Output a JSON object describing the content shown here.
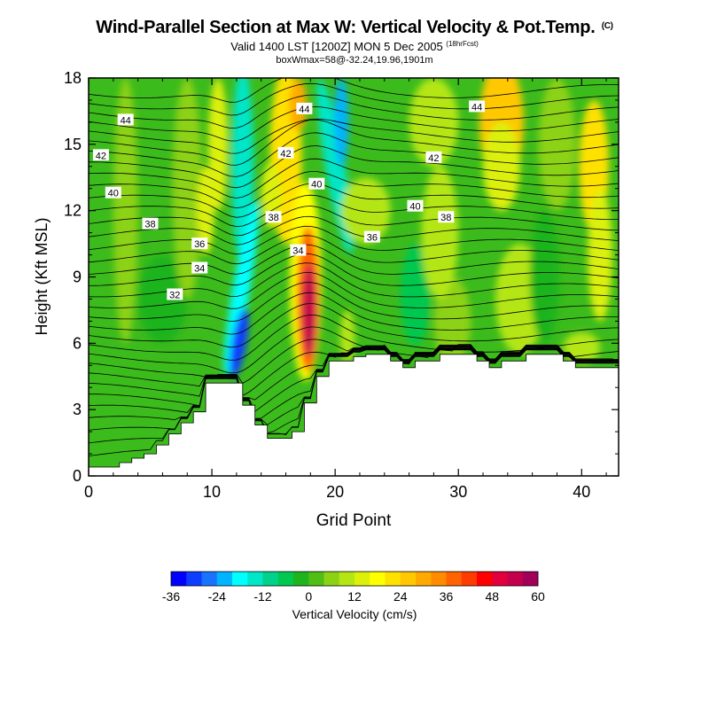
{
  "chart_data": {
    "type": "heatmap",
    "title": "Wind-Parallel Section at Max W: Vertical Velocity & Pot.Temp.",
    "title_suffix": "(C)",
    "subtitle": "Valid 1400 LST [1200Z] MON 5 Dec 2005",
    "subtitle_suffix": "(18hrFcst)",
    "subtitle2": "boxWmax=58@-32.24,19.96,1901m",
    "xlabel": "Grid Point",
    "ylabel": "Height (Kft MSL)",
    "xlim": [
      0,
      43
    ],
    "ylim": [
      0,
      18
    ],
    "x_ticks": [
      0,
      10,
      20,
      30,
      40
    ],
    "y_ticks": [
      0,
      3,
      6,
      9,
      12,
      15,
      18
    ],
    "colorbar": {
      "label": "Vertical Velocity (cm/s)",
      "min": -36,
      "max": 60,
      "step": 4,
      "tick_labels": [
        "-36",
        "-24",
        "-12",
        "0",
        "12",
        "24",
        "36",
        "48",
        "60"
      ],
      "colors": [
        "#0000ff",
        "#0d3dff",
        "#1a73ff",
        "#00b4ff",
        "#00ffff",
        "#00e6c8",
        "#00d28c",
        "#00c850",
        "#1eb41e",
        "#50be14",
        "#8cd214",
        "#b4e614",
        "#dcf00a",
        "#ffff00",
        "#ffe100",
        "#ffc800",
        "#ffaa00",
        "#ff8c00",
        "#ff6400",
        "#ff3c00",
        "#ff0000",
        "#e1003c",
        "#c3004b",
        "#a0005a"
      ]
    },
    "contour_labels": [
      {
        "value": "44",
        "x": 3,
        "y": 16.1
      },
      {
        "value": "42",
        "x": 1,
        "y": 14.5
      },
      {
        "value": "40",
        "x": 2,
        "y": 12.8
      },
      {
        "value": "38",
        "x": 5,
        "y": 11.4
      },
      {
        "value": "36",
        "x": 9,
        "y": 10.5
      },
      {
        "value": "34",
        "x": 9,
        "y": 9.4
      },
      {
        "value": "32",
        "x": 7,
        "y": 8.2
      },
      {
        "value": "44",
        "x": 17.5,
        "y": 16.6
      },
      {
        "value": "42",
        "x": 16,
        "y": 14.6
      },
      {
        "value": "40",
        "x": 18.5,
        "y": 13.2
      },
      {
        "value": "38",
        "x": 15,
        "y": 11.7
      },
      {
        "value": "34",
        "x": 17,
        "y": 10.2
      },
      {
        "value": "36",
        "x": 23,
        "y": 10.8
      },
      {
        "value": "40",
        "x": 26.5,
        "y": 12.2
      },
      {
        "value": "38",
        "x": 29,
        "y": 11.7
      },
      {
        "value": "42",
        "x": 28,
        "y": 14.4
      },
      {
        "value": "44",
        "x": 31.5,
        "y": 16.7
      }
    ],
    "terrain": [
      [
        0,
        0.4
      ],
      [
        1,
        0.4
      ],
      [
        2,
        0.4
      ],
      [
        3,
        0.6
      ],
      [
        4,
        0.8
      ],
      [
        5,
        1.0
      ],
      [
        6,
        1.4
      ],
      [
        7,
        1.9
      ],
      [
        8,
        2.4
      ],
      [
        9,
        2.9
      ],
      [
        10,
        4.2
      ],
      [
        11,
        4.2
      ],
      [
        12,
        4.2
      ],
      [
        13,
        3.2
      ],
      [
        14,
        2.3
      ],
      [
        15,
        1.7
      ],
      [
        16,
        1.7
      ],
      [
        17,
        2.0
      ],
      [
        18,
        3.3
      ],
      [
        19,
        4.5
      ],
      [
        20,
        5.2
      ],
      [
        21,
        5.2
      ],
      [
        22,
        5.4
      ],
      [
        23,
        5.5
      ],
      [
        24,
        5.5
      ],
      [
        25,
        5.2
      ],
      [
        26,
        4.9
      ],
      [
        27,
        5.2
      ],
      [
        28,
        5.2
      ],
      [
        29,
        5.5
      ],
      [
        30,
        5.5
      ],
      [
        31,
        5.5
      ],
      [
        32,
        5.2
      ],
      [
        33,
        4.9
      ],
      [
        34,
        5.2
      ],
      [
        35,
        5.2
      ],
      [
        36,
        5.5
      ],
      [
        37,
        5.5
      ],
      [
        38,
        5.5
      ],
      [
        39,
        5.2
      ],
      [
        40,
        4.9
      ],
      [
        41,
        4.9
      ],
      [
        42,
        4.9
      ],
      [
        43,
        4.9
      ]
    ]
  }
}
